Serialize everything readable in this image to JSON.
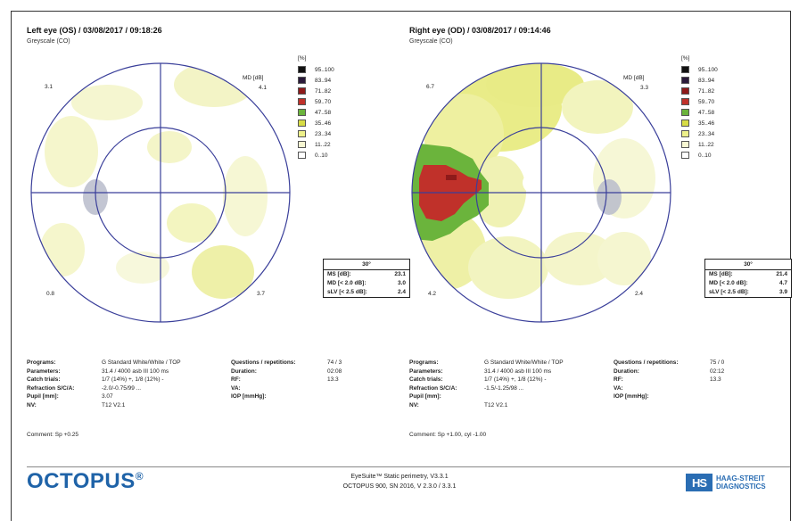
{
  "left": {
    "title": "Left eye (OS) / 03/08/2017 / 09:18:26",
    "subtitle": "Greyscale (CO)",
    "quadrants": {
      "tl": "3.1",
      "tr": "4.1",
      "bl": "0.8",
      "br": "3.7"
    },
    "md_label": "MD [dB]",
    "summary": {
      "header": "30°",
      "rows": [
        {
          "k": "MS [dB]:",
          "v": "23.1"
        },
        {
          "k": "MD [< 2.0 dB]:",
          "v": "3.0"
        },
        {
          "k": "sLV [< 2.5 dB]:",
          "v": "2.4"
        }
      ]
    },
    "params": [
      {
        "k": "Programs:",
        "v": "G Standard   White/White / TOP",
        "k2": "Questions / repetitions:",
        "v2": "74 / 3"
      },
      {
        "k": "Parameters:",
        "v": "31.4  / 4000 asb III 100 ms",
        "k2": "Duration:",
        "v2": "02:08"
      },
      {
        "k": "Catch trials:",
        "v": "1/7 (14%) +, 1/8 (12%) -",
        "k2": "RF:",
        "v2": "13.3"
      },
      {
        "k": "Refraction S/C/A:",
        "v": "-2.0/-0.75/99  ...",
        "k2": "VA:",
        "v2": ""
      },
      {
        "k": "Pupil [mm]:",
        "v": "3.07",
        "k2": "IOP [mmHg]:",
        "v2": ""
      },
      {
        "k": "NV:",
        "v": "T12 V2.1",
        "k2": "",
        "v2": ""
      }
    ],
    "comment": "Comment: Sp +0.25"
  },
  "right": {
    "title": "Right eye (OD) / 03/08/2017 / 09:14:46",
    "subtitle": "Greyscale (CO)",
    "quadrants": {
      "tl": "6.7",
      "tr": "3.3",
      "bl": "4.2",
      "br": "2.4"
    },
    "md_label": "MD [dB]",
    "summary": {
      "header": "30°",
      "rows": [
        {
          "k": "MS [dB]:",
          "v": "21.4"
        },
        {
          "k": "MD [< 2.0 dB]:",
          "v": "4.7"
        },
        {
          "k": "sLV [< 2.5 dB]:",
          "v": "3.9"
        }
      ]
    },
    "params": [
      {
        "k": "Programs:",
        "v": "G Standard   White/White / TOP",
        "k2": "Questions / repetitions:",
        "v2": "75 / 0"
      },
      {
        "k": "Parameters:",
        "v": "31.4  / 4000 asb III 100 ms",
        "k2": "Duration:",
        "v2": "02:12"
      },
      {
        "k": "Catch trials:",
        "v": "1/7 (14%) +, 1/8 (12%) -",
        "k2": "RF:",
        "v2": "13.3"
      },
      {
        "k": "Refraction S/C/A:",
        "v": "-1.5/-1.25/98  ...",
        "k2": "VA:",
        "v2": ""
      },
      {
        "k": "Pupil [mm]:",
        "v": "",
        "k2": "IOP [mmHg]:",
        "v2": ""
      },
      {
        "k": "NV:",
        "v": "T12 V2.1",
        "k2": "",
        "v2": ""
      }
    ],
    "comment": "Comment: Sp +1.00, cyl -1.00"
  },
  "legend": {
    "unit": "[%]",
    "items": [
      {
        "label": "95..100",
        "color": "#111111"
      },
      {
        "label": "83..94",
        "color": "#2a1a3a"
      },
      {
        "label": "71..82",
        "color": "#8e1a1a"
      },
      {
        "label": "59..70",
        "color": "#c0312a"
      },
      {
        "label": "47..58",
        "color": "#6bb43c"
      },
      {
        "label": "35..46",
        "color": "#d7dc45"
      },
      {
        "label": "23..34",
        "color": "#edf08a"
      },
      {
        "label": "11..22",
        "color": "#f7f7d2"
      },
      {
        "label": "0..10",
        "color": "#ffffff"
      }
    ]
  },
  "footer": {
    "brand": "OCTOPUS",
    "brand_mark": "®",
    "software": "EyeSuite™ Static perimetry, V3.3.1",
    "device": "OCTOPUS 900, SN 2016, V 2.3.0  / 3.3.1",
    "hs_mark": "HS",
    "company_line1": "HAAG-STREIT",
    "company_line2": "DIAGNOSTICS"
  }
}
